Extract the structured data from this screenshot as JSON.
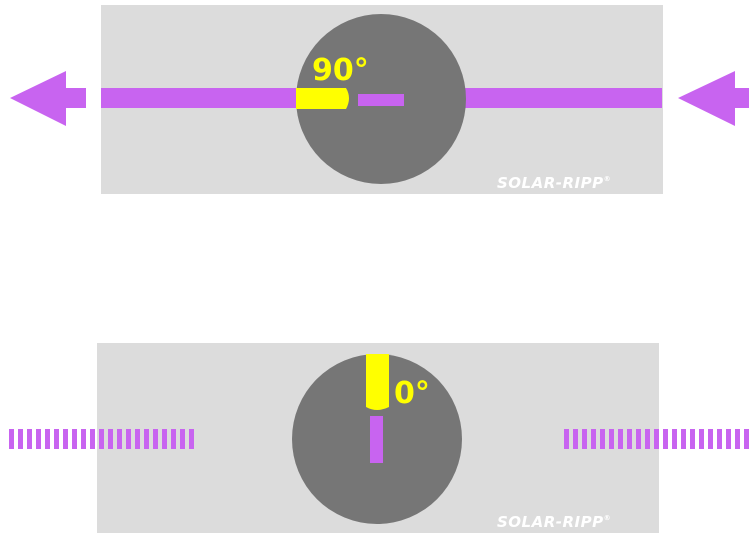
{
  "colors": {
    "panel": "#dcdcdc",
    "disc": "#767676",
    "flow": "#c864f0",
    "highlight": "#ffff00",
    "brand_text": "#ffffff"
  },
  "top_panel": {
    "angle": "90°",
    "brand": "SOLAR-RIPP",
    "brand_mark": "®",
    "flow_state": "open"
  },
  "bottom_panel": {
    "angle": "0°",
    "brand": "SOLAR-RIPP",
    "brand_mark": "®",
    "flow_state": "closed"
  },
  "icons": {
    "left_arrow": "arrow-left-icon",
    "right_arrow": "arrow-left-icon"
  }
}
